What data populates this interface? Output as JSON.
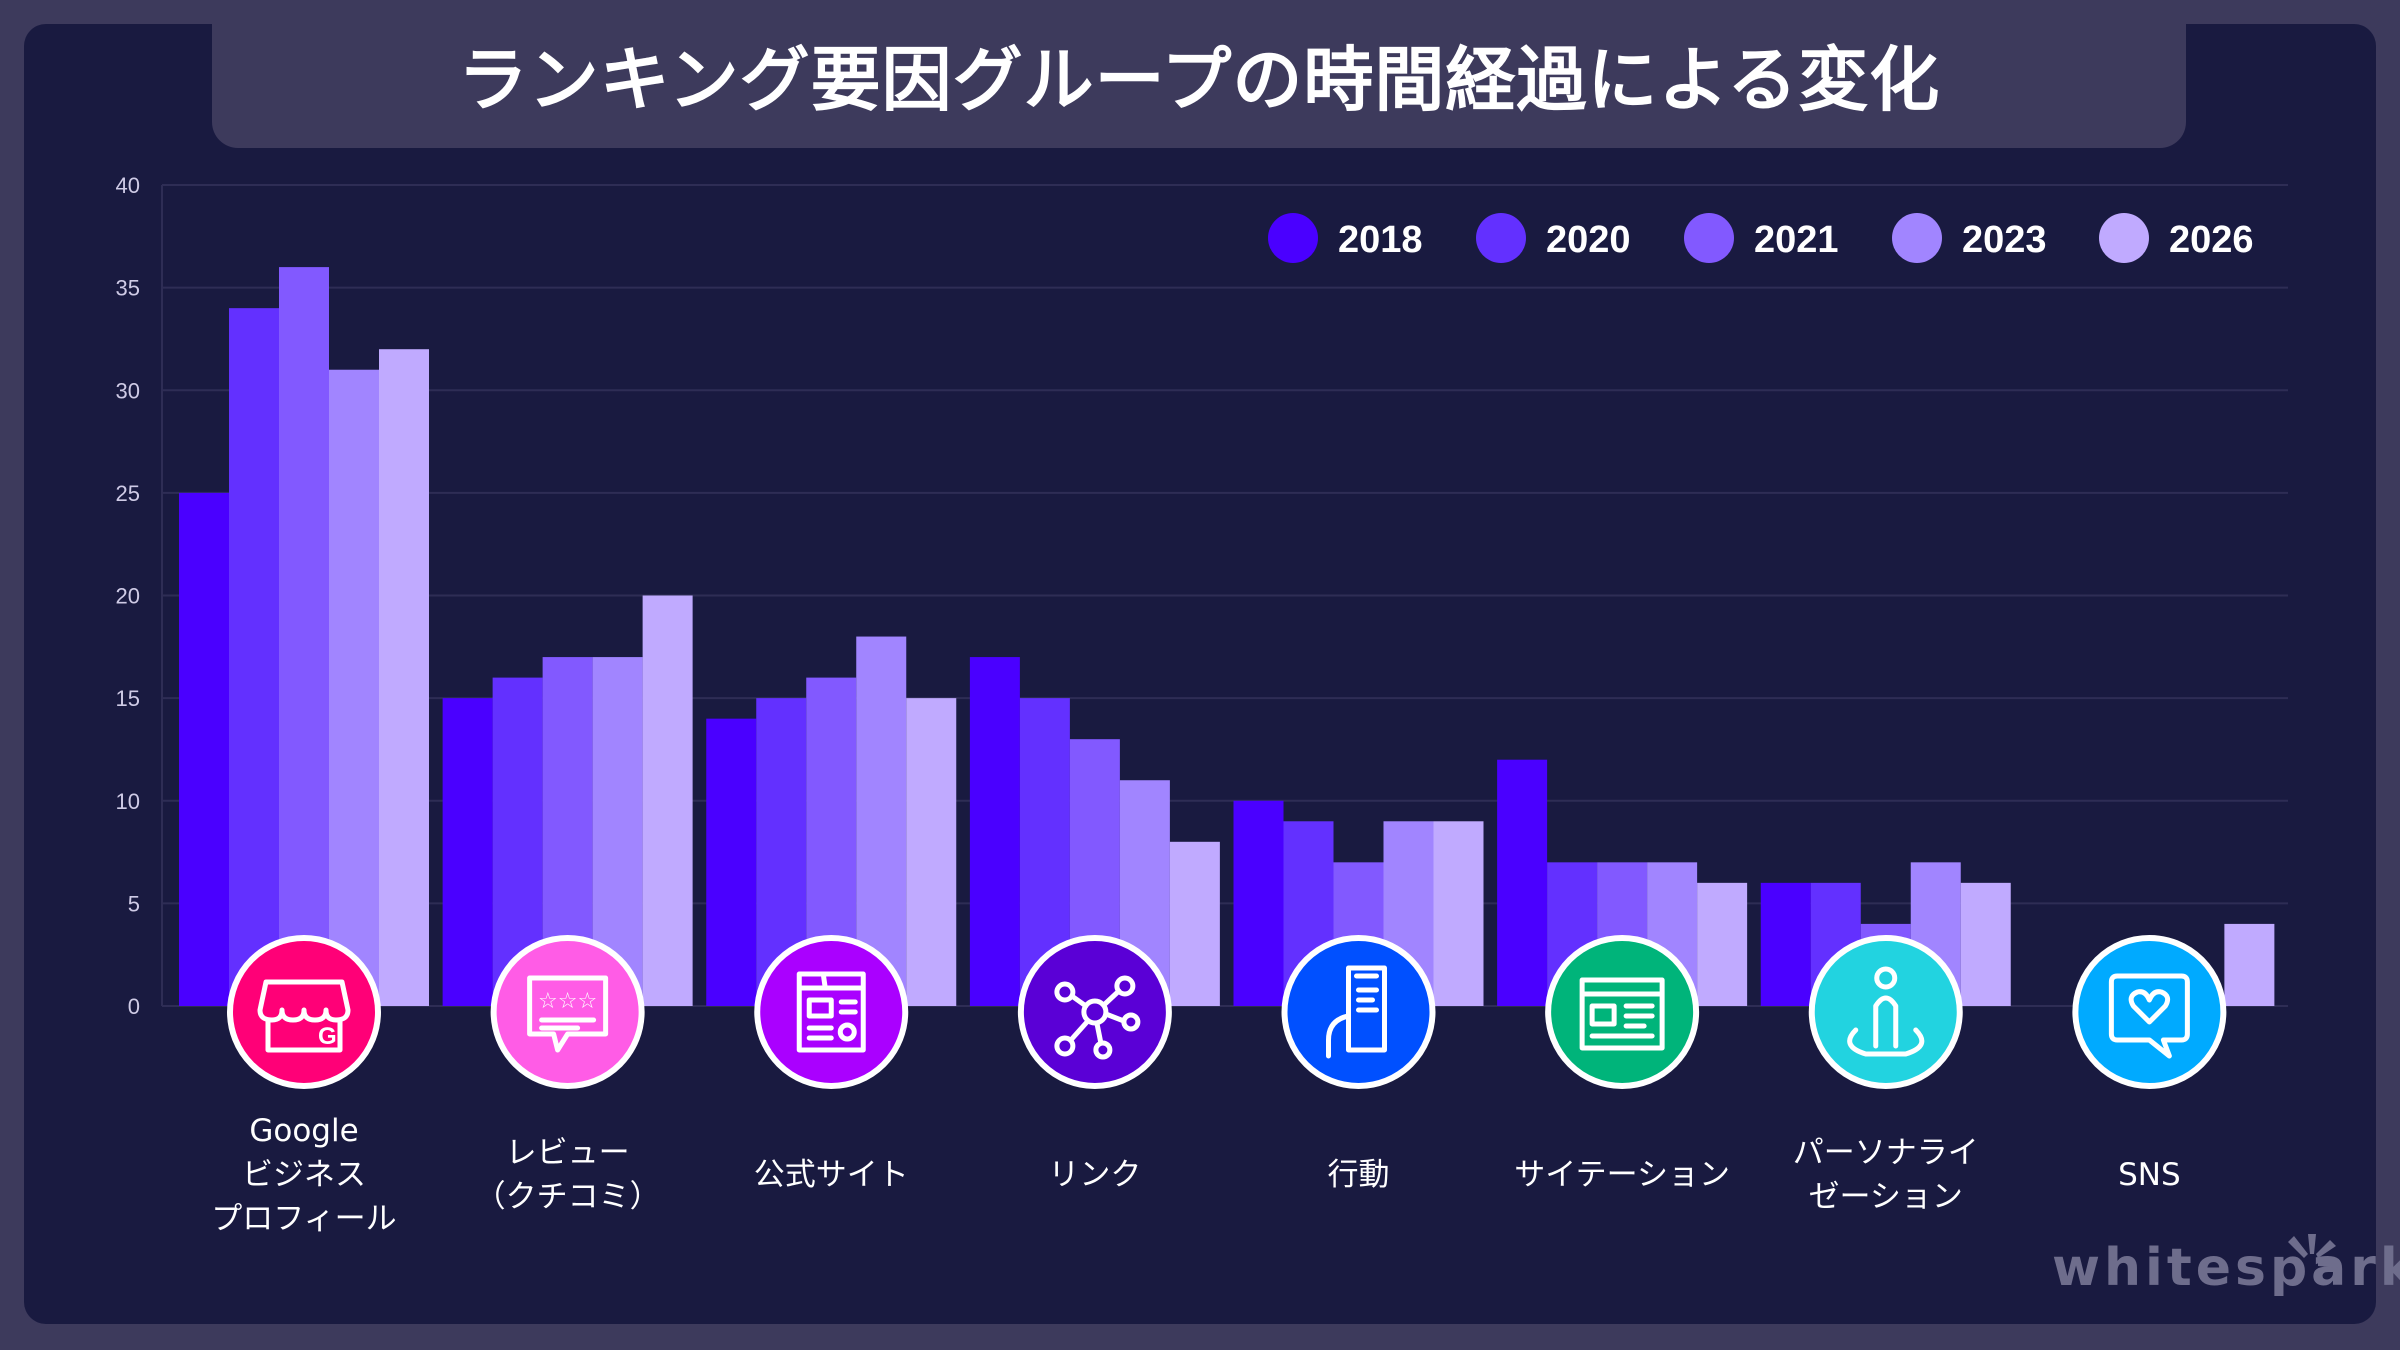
{
  "title": "ランキング要因グループの時間経過による変化",
  "logo_text": "whitespark",
  "chart_data": {
    "type": "bar",
    "title": "ランキング要因グループの時間経過による変化",
    "xlabel": "",
    "ylabel": "",
    "ylim": [
      0,
      40
    ],
    "yticks": [
      0,
      5,
      10,
      15,
      20,
      25,
      30,
      35,
      40
    ],
    "grid": true,
    "legend_position": "top-right",
    "categories": [
      "Google\nビジネス\nプロフィール",
      "レビュー\n（クチコミ）",
      "公式サイト",
      "リンク",
      "行動",
      "サイテーション",
      "パーソナライ\nゼーション",
      "SNS"
    ],
    "category_icons": [
      {
        "name": "storefront-icon",
        "color": "#ff0077"
      },
      {
        "name": "review-stars-icon",
        "color": "#ff5ce6"
      },
      {
        "name": "website-icon",
        "color": "#aa00ff"
      },
      {
        "name": "link-network-icon",
        "color": "#5a00d6"
      },
      {
        "name": "phone-in-hand-icon",
        "color": "#0050ff"
      },
      {
        "name": "newspaper-icon",
        "color": "#00b47a"
      },
      {
        "name": "person-icon",
        "color": "#22d3e0"
      },
      {
        "name": "social-heart-icon",
        "color": "#00aaff"
      }
    ],
    "series": [
      {
        "name": "2018",
        "color": "#4a00ff",
        "values": [
          25,
          15,
          14,
          17,
          10,
          12,
          6,
          0
        ]
      },
      {
        "name": "2020",
        "color": "#6330ff",
        "values": [
          34,
          16,
          15,
          15,
          9,
          7,
          6,
          0
        ]
      },
      {
        "name": "2021",
        "color": "#8259ff",
        "values": [
          36,
          17,
          16,
          13,
          7,
          7,
          4,
          0
        ]
      },
      {
        "name": "2023",
        "color": "#a185ff",
        "values": [
          31,
          17,
          18,
          11,
          9,
          7,
          7,
          0
        ]
      },
      {
        "name": "2026",
        "color": "#c0aaff",
        "values": [
          32,
          20,
          15,
          8,
          9,
          6,
          6,
          4
        ]
      }
    ]
  }
}
